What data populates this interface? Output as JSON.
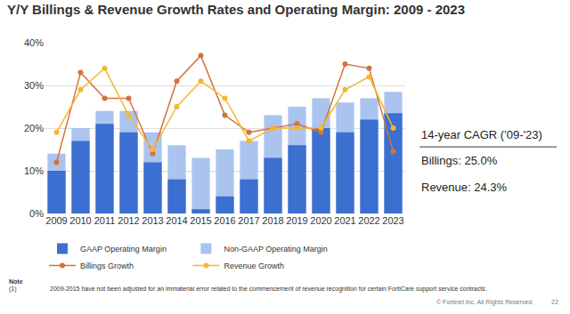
{
  "chart_data": {
    "type": "bar",
    "title": "Y/Y Billings & Revenue Growth Rates and Operating Margin: 2009 - 2023",
    "categories": [
      "2009",
      "2010",
      "2011",
      "2012",
      "2013",
      "2014",
      "2015",
      "2016",
      "2017",
      "2018",
      "2019",
      "2020",
      "2021",
      "2022",
      "2023"
    ],
    "series": [
      {
        "name": "GAAP Operating Margin",
        "type": "bar",
        "color": "#3b6fd0",
        "values": [
          10,
          17,
          21,
          19,
          12,
          8,
          1,
          4,
          8,
          13,
          16,
          20,
          19,
          22,
          23.5
        ]
      },
      {
        "name": "Non-GAAP Operating Margin",
        "type": "bar",
        "color": "#aac4ef",
        "values": [
          14,
          20,
          24,
          24,
          19,
          16,
          13,
          15,
          17,
          23,
          25,
          27,
          26,
          27,
          28.5
        ]
      },
      {
        "name": "Billings Growth",
        "type": "line",
        "color": "#d2733a",
        "marker": "circle",
        "line_style": "solid",
        "values": [
          12,
          33,
          27,
          27,
          14,
          31,
          37,
          23,
          19,
          20,
          21,
          19,
          35,
          34,
          14.5
        ]
      },
      {
        "name": "Revenue Growth",
        "type": "line",
        "color": "#f5b731",
        "marker": "circle",
        "line_style": "solid",
        "values": [
          19,
          29,
          34,
          23,
          15,
          25,
          31,
          27,
          17,
          20,
          20,
          20,
          29,
          32,
          20
        ]
      }
    ],
    "ylim": [
      0,
      40
    ],
    "yticks": [
      {
        "value": 0,
        "label": "0%"
      },
      {
        "value": 10,
        "label": "10%"
      },
      {
        "value": 20,
        "label": "20%"
      },
      {
        "value": 30,
        "label": "30%"
      },
      {
        "value": 40,
        "label": "40%"
      }
    ],
    "grid": true,
    "legend": "bottom",
    "annotations": [
      "14-year CAGR ('09-'23)",
      "Billings: 25.0%",
      "Revenue: 24.3%",
      "Note",
      "(1)",
      "2009-2015 have not been adjusted for an immaterial error related to the commencement of revenue recognition for certain FortiCare support service contracts.",
      "© Fortinet Inc. All Rights Reserved.",
      "22"
    ]
  }
}
